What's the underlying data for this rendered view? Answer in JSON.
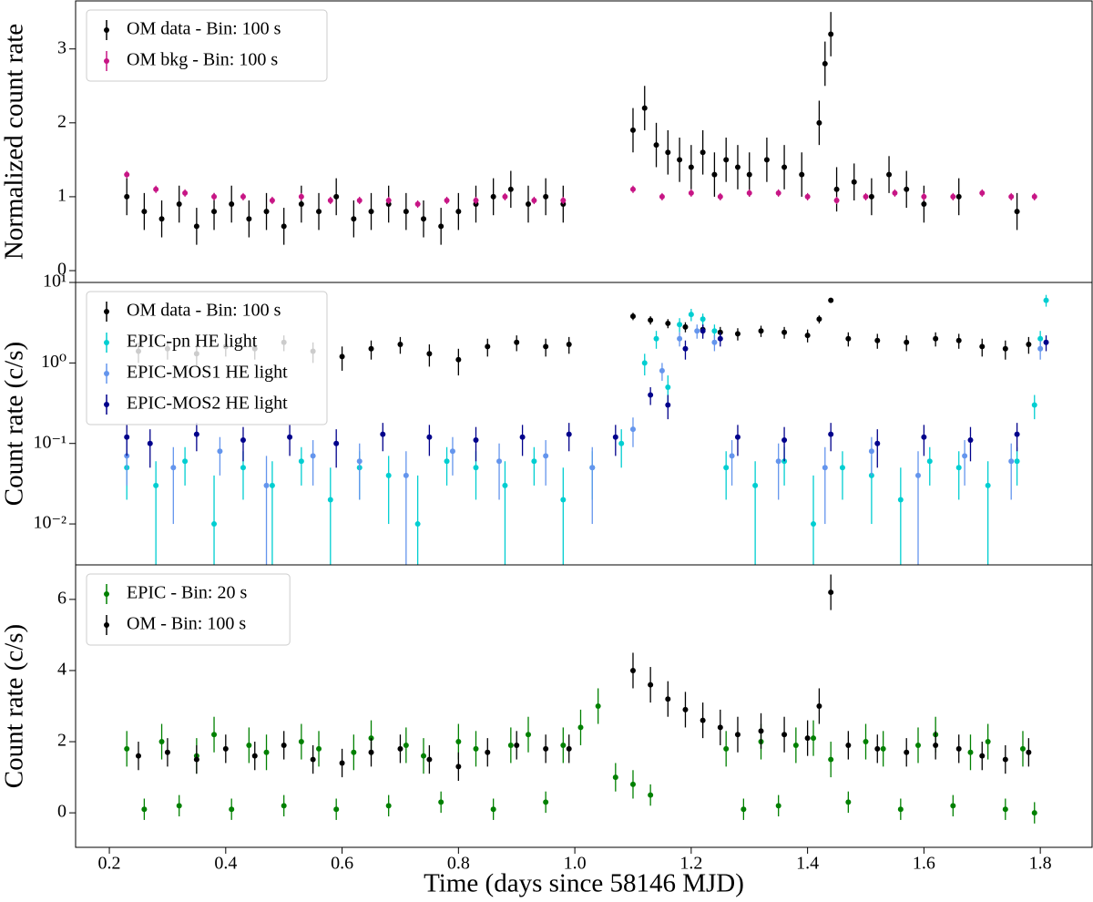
{
  "chart_data": [
    {
      "type": "errorbar",
      "ylabel": "Normalized count rate",
      "xlim": [
        0.142,
        1.889
      ],
      "ylim": [
        -0.16,
        3.65
      ],
      "yticks": [
        0,
        1,
        2,
        3
      ],
      "legend": "upper left",
      "series": [
        {
          "name": "OM data - Bin: 100 s",
          "color": "#000000",
          "x": [
            0.23,
            0.26,
            0.29,
            0.32,
            0.35,
            0.38,
            0.41,
            0.44,
            0.47,
            0.5,
            0.53,
            0.56,
            0.59,
            0.62,
            0.65,
            0.68,
            0.71,
            0.74,
            0.77,
            0.8,
            0.83,
            0.86,
            0.89,
            0.92,
            0.95,
            0.98,
            1.1,
            1.12,
            1.14,
            1.16,
            1.18,
            1.2,
            1.22,
            1.24,
            1.26,
            1.28,
            1.3,
            1.33,
            1.36,
            1.39,
            1.42,
            1.43,
            1.44,
            1.45,
            1.48,
            1.51,
            1.54,
            1.57,
            1.6,
            1.66,
            1.76
          ],
          "values": [
            1.0,
            0.8,
            0.7,
            0.9,
            0.6,
            0.8,
            0.9,
            0.7,
            0.8,
            0.6,
            0.9,
            0.8,
            1.0,
            0.7,
            0.8,
            0.9,
            0.8,
            0.7,
            0.6,
            0.8,
            0.9,
            1.0,
            1.1,
            0.9,
            1.0,
            0.9,
            1.9,
            2.2,
            1.7,
            1.6,
            1.5,
            1.4,
            1.6,
            1.3,
            1.5,
            1.4,
            1.3,
            1.5,
            1.4,
            1.3,
            2.0,
            2.8,
            3.2,
            1.1,
            1.2,
            1.0,
            1.3,
            1.1,
            0.9,
            1.0,
            0.8
          ],
          "errors": [
            0.25,
            0.25,
            0.25,
            0.25,
            0.25,
            0.25,
            0.25,
            0.25,
            0.25,
            0.25,
            0.25,
            0.25,
            0.25,
            0.25,
            0.25,
            0.25,
            0.25,
            0.25,
            0.25,
            0.25,
            0.25,
            0.25,
            0.25,
            0.25,
            0.25,
            0.25,
            0.3,
            0.3,
            0.3,
            0.3,
            0.3,
            0.3,
            0.3,
            0.3,
            0.3,
            0.3,
            0.3,
            0.3,
            0.3,
            0.3,
            0.3,
            0.3,
            0.3,
            0.3,
            0.25,
            0.25,
            0.25,
            0.25,
            0.25,
            0.25,
            0.25
          ]
        },
        {
          "name": "OM bkg - Bin: 100 s",
          "color": "#c71585",
          "x": [
            0.23,
            0.28,
            0.33,
            0.38,
            0.43,
            0.48,
            0.53,
            0.58,
            0.63,
            0.68,
            0.73,
            0.78,
            0.83,
            0.88,
            0.93,
            0.98,
            1.1,
            1.15,
            1.2,
            1.25,
            1.3,
            1.35,
            1.4,
            1.45,
            1.5,
            1.55,
            1.6,
            1.65,
            1.7,
            1.75,
            1.79
          ],
          "values": [
            1.3,
            1.1,
            1.05,
            1.0,
            1.0,
            0.95,
            1.0,
            0.95,
            0.95,
            0.95,
            0.9,
            0.95,
            0.95,
            1.0,
            0.95,
            0.95,
            1.1,
            1.0,
            1.05,
            1.0,
            1.05,
            1.05,
            1.0,
            0.95,
            1.0,
            1.05,
            1.0,
            1.0,
            1.05,
            1.0,
            1.0
          ],
          "errors": [
            0.05,
            0.05,
            0.05,
            0.05,
            0.05,
            0.05,
            0.05,
            0.05,
            0.05,
            0.05,
            0.05,
            0.05,
            0.05,
            0.05,
            0.05,
            0.05,
            0.05,
            0.05,
            0.05,
            0.05,
            0.05,
            0.05,
            0.05,
            0.05,
            0.05,
            0.05,
            0.05,
            0.05,
            0.05,
            0.05,
            0.05
          ]
        }
      ]
    },
    {
      "type": "errorbar",
      "ylabel": "Count rate (c/s)",
      "xlim": [
        0.142,
        1.889
      ],
      "ylim": [
        0.0031,
        10
      ],
      "log_y": true,
      "legend": "upper left",
      "yticks": [
        {
          "value": 0.01,
          "label": "10⁻²"
        },
        {
          "value": 0.1,
          "label": "10⁻¹"
        },
        {
          "value": 1,
          "label": "10⁰"
        },
        {
          "value": 10,
          "label": "10¹"
        }
      ],
      "series": [
        {
          "name": "OM data - Bin: 100 s",
          "color": "#000000",
          "x": [
            0.25,
            0.3,
            0.35,
            0.4,
            0.45,
            0.5,
            0.55,
            0.6,
            0.65,
            0.7,
            0.75,
            0.8,
            0.85,
            0.9,
            0.95,
            0.99,
            1.1,
            1.13,
            1.16,
            1.19,
            1.22,
            1.25,
            1.28,
            1.32,
            1.36,
            1.4,
            1.42,
            1.44,
            1.47,
            1.52,
            1.57,
            1.62,
            1.66,
            1.7,
            1.74,
            1.78
          ],
          "values": [
            1.4,
            1.5,
            1.3,
            1.6,
            1.5,
            1.8,
            1.4,
            1.2,
            1.5,
            1.7,
            1.3,
            1.1,
            1.6,
            1.8,
            1.6,
            1.7,
            3.8,
            3.4,
            3.1,
            2.8,
            2.6,
            2.4,
            2.3,
            2.5,
            2.4,
            2.2,
            3.5,
            6.0,
            2.0,
            1.9,
            1.8,
            2.0,
            1.9,
            1.6,
            1.5,
            1.7
          ],
          "errors": [
            0.4,
            0.4,
            0.4,
            0.4,
            0.4,
            0.4,
            0.4,
            0.4,
            0.4,
            0.4,
            0.4,
            0.4,
            0.4,
            0.4,
            0.4,
            0.4,
            0.4,
            0.4,
            0.4,
            0.4,
            0.4,
            0.4,
            0.4,
            0.4,
            0.4,
            0.4,
            0.4,
            0.4,
            0.4,
            0.4,
            0.4,
            0.4,
            0.4,
            0.4,
            0.4,
            0.4
          ]
        },
        {
          "name": "EPIC-pn HE light",
          "color": "#00ced1",
          "x": [
            0.23,
            0.28,
            0.33,
            0.38,
            0.43,
            0.48,
            0.53,
            0.58,
            0.63,
            0.68,
            0.73,
            0.78,
            0.83,
            0.88,
            0.93,
            0.98,
            1.03,
            1.08,
            1.12,
            1.14,
            1.16,
            1.18,
            1.2,
            1.22,
            1.24,
            1.26,
            1.31,
            1.36,
            1.41,
            1.46,
            1.51,
            1.56,
            1.61,
            1.66,
            1.71,
            1.76,
            1.79,
            1.8,
            1.81
          ],
          "values": [
            0.05,
            0.03,
            0.06,
            0.01,
            0.05,
            0.03,
            0.06,
            0.02,
            0.05,
            0.04,
            0.01,
            0.06,
            0.05,
            0.03,
            0.06,
            0.02,
            0.05,
            0.1,
            1.0,
            2.0,
            0.5,
            3.0,
            4.0,
            3.5,
            2.5,
            0.05,
            0.03,
            0.06,
            0.01,
            0.05,
            0.04,
            0.02,
            0.06,
            0.05,
            0.03,
            0.06,
            0.3,
            2.0,
            6.0
          ],
          "errors": [
            0.03,
            0.03,
            0.03,
            0.03,
            0.03,
            0.03,
            0.03,
            0.03,
            0.03,
            0.03,
            0.03,
            0.03,
            0.03,
            0.03,
            0.03,
            0.03,
            0.03,
            0.05,
            0.3,
            0.5,
            0.2,
            0.6,
            0.7,
            0.6,
            0.5,
            0.03,
            0.03,
            0.03,
            0.03,
            0.03,
            0.03,
            0.03,
            0.03,
            0.03,
            0.03,
            0.03,
            0.1,
            0.5,
            1.0
          ]
        },
        {
          "name": "EPIC-MOS1 HE light",
          "color": "#6495ed",
          "x": [
            0.23,
            0.31,
            0.39,
            0.47,
            0.55,
            0.63,
            0.71,
            0.79,
            0.87,
            0.95,
            1.03,
            1.1,
            1.15,
            1.18,
            1.21,
            1.24,
            1.27,
            1.35,
            1.43,
            1.51,
            1.59,
            1.67,
            1.75,
            1.8
          ],
          "values": [
            0.07,
            0.05,
            0.08,
            0.03,
            0.07,
            0.06,
            0.04,
            0.08,
            0.06,
            0.07,
            0.05,
            0.15,
            0.8,
            2.0,
            2.5,
            1.8,
            0.07,
            0.06,
            0.05,
            0.08,
            0.04,
            0.07,
            0.06,
            1.5
          ],
          "errors": [
            0.04,
            0.04,
            0.04,
            0.04,
            0.04,
            0.04,
            0.04,
            0.04,
            0.04,
            0.04,
            0.04,
            0.06,
            0.2,
            0.4,
            0.5,
            0.4,
            0.04,
            0.04,
            0.04,
            0.04,
            0.04,
            0.04,
            0.04,
            0.4
          ]
        },
        {
          "name": "EPIC-MOS2 HE light",
          "color": "#00008b",
          "x": [
            0.23,
            0.27,
            0.35,
            0.43,
            0.51,
            0.59,
            0.67,
            0.75,
            0.83,
            0.91,
            0.99,
            1.07,
            1.13,
            1.16,
            1.19,
            1.22,
            1.25,
            1.28,
            1.36,
            1.44,
            1.52,
            1.6,
            1.68,
            1.76,
            1.81
          ],
          "values": [
            0.12,
            0.1,
            0.13,
            0.11,
            0.12,
            0.1,
            0.13,
            0.12,
            0.11,
            0.12,
            0.13,
            0.12,
            0.4,
            0.3,
            1.5,
            2.5,
            2.0,
            0.12,
            0.11,
            0.13,
            0.1,
            0.12,
            0.11,
            0.13,
            1.8
          ],
          "errors": [
            0.05,
            0.05,
            0.05,
            0.05,
            0.05,
            0.05,
            0.05,
            0.05,
            0.05,
            0.05,
            0.05,
            0.05,
            0.1,
            0.1,
            0.4,
            0.5,
            0.4,
            0.05,
            0.05,
            0.05,
            0.05,
            0.05,
            0.05,
            0.05,
            0.4
          ]
        }
      ]
    },
    {
      "type": "errorbar",
      "ylabel": "Count rate (c/s)",
      "xlabel": "Time (days since 58146 MJD)",
      "xlim": [
        0.142,
        1.889
      ],
      "ylim": [
        -0.97,
        6.97
      ],
      "yticks": [
        0,
        2,
        4,
        6
      ],
      "legend": "upper left",
      "xticks": [
        0.2,
        0.4,
        0.6,
        0.8,
        {
          "value": 1,
          "label": "1.0"
        },
        1.2,
        1.4,
        1.6,
        1.8
      ],
      "series": [
        {
          "name": "EPIC - Bin: 20 s",
          "color": "#008000",
          "x": [
            0.23,
            0.26,
            0.29,
            0.32,
            0.35,
            0.38,
            0.41,
            0.44,
            0.47,
            0.5,
            0.53,
            0.56,
            0.59,
            0.62,
            0.65,
            0.68,
            0.71,
            0.74,
            0.77,
            0.8,
            0.83,
            0.86,
            0.89,
            0.92,
            0.95,
            0.98,
            1.01,
            1.04,
            1.07,
            1.1,
            1.13,
            1.26,
            1.29,
            1.32,
            1.35,
            1.38,
            1.41,
            1.44,
            1.47,
            1.5,
            1.53,
            1.56,
            1.59,
            1.62,
            1.65,
            1.68,
            1.71,
            1.74,
            1.77,
            1.79
          ],
          "values": [
            1.8,
            0.1,
            2.0,
            0.2,
            1.6,
            2.2,
            0.1,
            1.9,
            1.7,
            0.2,
            2.0,
            1.8,
            0.1,
            1.7,
            2.1,
            0.2,
            1.9,
            1.6,
            0.3,
            2.0,
            1.8,
            0.1,
            1.9,
            2.2,
            0.3,
            1.9,
            2.4,
            3.0,
            1.0,
            0.8,
            0.5,
            1.8,
            0.1,
            2.0,
            0.2,
            1.9,
            2.1,
            1.5,
            0.3,
            2.0,
            1.8,
            0.1,
            1.9,
            2.2,
            0.2,
            1.7,
            2.0,
            0.1,
            1.8,
            0.0
          ],
          "errors": [
            0.5,
            0.3,
            0.5,
            0.3,
            0.5,
            0.5,
            0.3,
            0.5,
            0.5,
            0.3,
            0.5,
            0.5,
            0.3,
            0.5,
            0.5,
            0.3,
            0.5,
            0.5,
            0.3,
            0.5,
            0.5,
            0.3,
            0.5,
            0.5,
            0.3,
            0.5,
            0.5,
            0.5,
            0.4,
            0.4,
            0.3,
            0.5,
            0.3,
            0.5,
            0.3,
            0.5,
            0.5,
            0.5,
            0.3,
            0.5,
            0.5,
            0.3,
            0.5,
            0.5,
            0.3,
            0.5,
            0.5,
            0.3,
            0.5,
            0.3
          ]
        },
        {
          "name": "OM - Bin: 100 s",
          "color": "#000000",
          "x": [
            0.25,
            0.3,
            0.35,
            0.4,
            0.45,
            0.5,
            0.55,
            0.6,
            0.65,
            0.7,
            0.75,
            0.8,
            0.85,
            0.9,
            0.95,
            0.99,
            1.1,
            1.13,
            1.16,
            1.19,
            1.22,
            1.25,
            1.28,
            1.32,
            1.36,
            1.4,
            1.42,
            1.44,
            1.47,
            1.52,
            1.57,
            1.62,
            1.66,
            1.7,
            1.74,
            1.78
          ],
          "values": [
            1.6,
            1.7,
            1.5,
            1.8,
            1.6,
            1.9,
            1.5,
            1.4,
            1.7,
            1.8,
            1.5,
            1.3,
            1.7,
            1.9,
            1.8,
            1.8,
            4.0,
            3.6,
            3.2,
            2.9,
            2.6,
            2.4,
            2.2,
            2.3,
            2.2,
            2.1,
            3.0,
            6.2,
            1.9,
            1.8,
            1.7,
            1.9,
            1.8,
            1.6,
            1.5,
            1.7
          ],
          "errors": [
            0.4,
            0.4,
            0.4,
            0.4,
            0.4,
            0.4,
            0.4,
            0.4,
            0.4,
            0.4,
            0.4,
            0.4,
            0.4,
            0.4,
            0.4,
            0.4,
            0.5,
            0.5,
            0.5,
            0.5,
            0.5,
            0.5,
            0.5,
            0.5,
            0.5,
            0.5,
            0.5,
            0.5,
            0.4,
            0.4,
            0.4,
            0.4,
            0.4,
            0.4,
            0.4,
            0.4
          ]
        }
      ]
    }
  ]
}
